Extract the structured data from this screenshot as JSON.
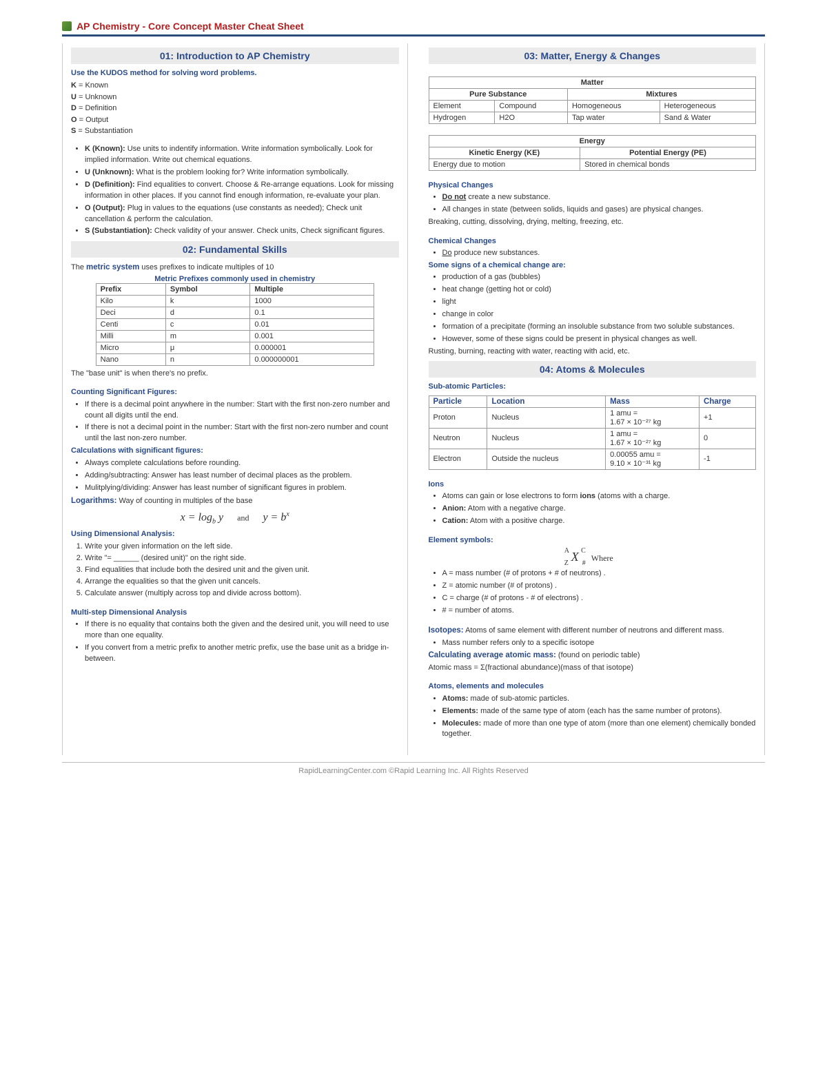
{
  "header": {
    "title": "AP Chemistry - Core Concept Master Cheat Sheet"
  },
  "footer": "RapidLearningCenter.com   ©Rapid Learning Inc. All Rights Reserved",
  "s01": {
    "title": "01: Introduction to AP Chemistry",
    "lead": "Use the KUDOS method for solving word problems.",
    "kv": [
      {
        "k": "K",
        "v": "Known"
      },
      {
        "k": "U",
        "v": "Unknown"
      },
      {
        "k": "D",
        "v": "Definition"
      },
      {
        "k": "O",
        "v": "Output"
      },
      {
        "k": "S",
        "v": "Substantiation"
      }
    ],
    "bullets": [
      {
        "b": "K (Known):",
        "t": " Use units to indentify information. Write information symbolically. Look for implied information. Write out chemical equations."
      },
      {
        "b": "U (Unknown):",
        "t": " What is the problem looking for? Write information symbolically."
      },
      {
        "b": "D (Definition):",
        "t": " Find equalities to convert. Choose & Re-arrange equations. Look for missing information in other places. If you cannot find enough information, re-evaluate your plan."
      },
      {
        "b": "O (Output):",
        "t": " Plug in values to the equations (use constants as needed); Check unit cancellation & perform the calculation."
      },
      {
        "b": "S (Substantiation):",
        "t": " Check validity of your answer. Check units, Check significant figures."
      }
    ]
  },
  "s02": {
    "title": "02: Fundamental Skills",
    "intro_pre": "The ",
    "intro_bold": "metric system",
    "intro_post": " uses prefixes to indicate multiples of 10",
    "table_caption": "Metric Prefixes commonly used in chemistry",
    "table_headers": [
      "Prefix",
      "Symbol",
      "Multiple"
    ],
    "table_rows": [
      [
        "Kilo",
        "k",
        "1000"
      ],
      [
        "Deci",
        "d",
        "0.1"
      ],
      [
        "Centi",
        "c",
        "0.01"
      ],
      [
        "Milli",
        "m",
        "0.001"
      ],
      [
        "Micro",
        "μ",
        "0.000001"
      ],
      [
        "Nano",
        "n",
        "0.000000001"
      ]
    ],
    "table_note": "The \"base unit\" is when there's no prefix.",
    "sigfig_hdr": "Counting Significant Figures:",
    "sigfig_bullets": [
      "If there is a decimal point anywhere in the number: Start with the first non-zero number and count all digits until the end.",
      "If there is not a decimal point in the number: Start with the first non-zero number and count until the last non-zero number."
    ],
    "calcsig_hdr": "Calculations with significant figures:",
    "calcsig_bullets": [
      "Always complete calculations before rounding.",
      "Adding/subtracting: Answer has least number of decimal places as the problem.",
      "Mulitplying/dividing: Answer has least number of significant figures in problem."
    ],
    "log_pre": "Logarithms:",
    "log_post": " Way of counting in multiples of the base",
    "dim_hdr": "Using Dimensional Analysis:",
    "dim_steps": [
      "Write your given information on the left side.",
      "Write \"= ______ (desired unit)\" on the right side.",
      "Find equalities that include both the desired unit and the given unit.",
      "Arrange the equalities so that the given unit cancels.",
      "Calculate answer (multiply across top and divide across bottom)."
    ],
    "multi_hdr": "Multi-step Dimensional Analysis",
    "multi_bullets": [
      "If there is no equality that contains both the given and the desired unit, you will need to use more than one equality.",
      "If you convert from a metric prefix to another metric prefix, use the base unit as a bridge in-between."
    ]
  },
  "s03": {
    "title": "03: Matter, Energy & Changes",
    "matter": {
      "caption": "Matter",
      "h1": "Pure Substance",
      "h2": "Mixtures",
      "row1": [
        "Element",
        "Compound",
        "Homogeneous",
        "Heterogeneous"
      ],
      "row2": [
        "Hydrogen",
        "H2O",
        "Tap water",
        "Sand & Water"
      ]
    },
    "energy": {
      "caption": "Energy",
      "h1": "Kinetic Energy (KE)",
      "h2": "Potential Energy (PE)",
      "r1": "Energy due to motion",
      "r2": "Stored in chemical bonds"
    },
    "phys_hdr": "Physical Changes",
    "phys_bullets": [
      {
        "pre": "",
        "b": "Do not",
        "post": " create a new substance.",
        "u": true
      },
      {
        "pre": "All changes in state (between solids, liquids and gases) are physical changes.",
        "b": "",
        "post": ""
      }
    ],
    "phys_note": "Breaking, cutting, dissolving, drying, melting, freezing, etc.",
    "chem_hdr": "Chemical Changes",
    "chem_b1_pre": "",
    "chem_b1_u": "Do",
    "chem_b1_post": " produce new substances.",
    "signs_hdr": "Some signs of a chemical change are:",
    "signs": [
      "production of a gas (bubbles)",
      "heat change (getting hot or cold)",
      "light",
      "change in color",
      "formation of a precipitate (forming an insoluble substance from two soluble substances.",
      "However, some of these signs could be present in physical changes as well."
    ],
    "chem_note": "Rusting, burning, reacting with water, reacting with acid, etc."
  },
  "s04": {
    "title": "04: Atoms & Molecules",
    "sub_hdr": "Sub-atomic Particles:",
    "tbl_headers": [
      "Particle",
      "Location",
      "Mass",
      "Charge"
    ],
    "tbl_rows": [
      [
        "Proton",
        "Nucleus",
        "1 amu =\n1.67 × 10⁻²⁷ kg",
        "+1"
      ],
      [
        "Neutron",
        "Nucleus",
        "1 amu =\n1.67 × 10⁻²⁷ kg",
        "0"
      ],
      [
        "Electron",
        "Outside the nucleus",
        "0.00055 amu =\n9.10 × 10⁻³¹ kg",
        "-1"
      ]
    ],
    "ions_hdr": "Ions",
    "ions_bullets": [
      {
        "pre": "Atoms can gain or lose electrons to form ",
        "b": "ions",
        "post": " (atoms with a charge."
      },
      {
        "pre": "",
        "b": "Anion:",
        "post": " Atom with a negative charge."
      },
      {
        "pre": "",
        "b": "Cation:",
        "post": " Atom with a positive charge."
      }
    ],
    "elsym_hdr": "Element symbols:",
    "elsym_where": "Where",
    "elsym_bullets": [
      "A = mass number (# of protons + # of neutrons) .",
      "Z = atomic number (# of protons) .",
      "C = charge (# of protons - # of electrons) .",
      "# = number of atoms."
    ],
    "iso_pre": "Isotopes:",
    "iso_post": " Atoms of same element with different number of neutrons and different mass.",
    "iso_bullet": "Mass number refers only to a specific isotope",
    "avg_pre": "Calculating average atomic mass:",
    "avg_post": " (found on periodic table)",
    "avg_formula": "Atomic mass = Σ(fractional abundance)(mass of that isotope)",
    "aem_hdr": "Atoms, elements and molecules",
    "aem_bullets": [
      {
        "b": "Atoms:",
        "t": " made of sub-atomic particles."
      },
      {
        "b": "Elements:",
        "t": " made of the same type of atom (each has the same number of protons)."
      },
      {
        "b": "Molecules:",
        "t": " made of more than one type of atom (more than one element) chemically bonded together."
      }
    ]
  }
}
